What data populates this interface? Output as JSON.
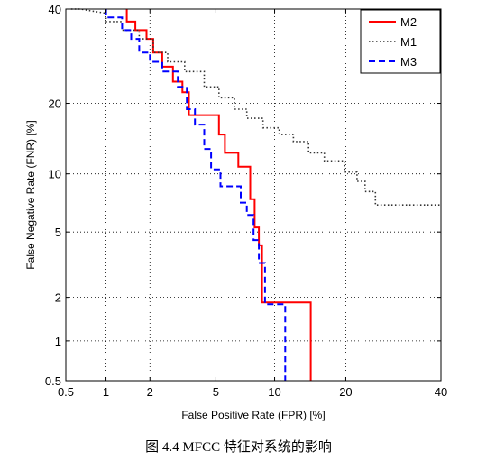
{
  "chart_data": {
    "type": "line",
    "title": "",
    "xlabel": "False Positive Rate (FPR) [%]",
    "ylabel": "False Negative Rate (FNR) [%]",
    "x_scale": "normal-deviate",
    "y_scale": "normal-deviate",
    "xlim": [
      0.5,
      40
    ],
    "ylim": [
      0.5,
      40
    ],
    "xticks": [
      0.5,
      1,
      2,
      5,
      10,
      20,
      40
    ],
    "xtick_labels": [
      "0.5",
      "1",
      "2",
      "5",
      "10",
      "20",
      "40"
    ],
    "yticks": [
      0.5,
      1,
      2,
      5,
      10,
      20,
      40
    ],
    "ytick_labels": [
      "0.5",
      "1",
      "2",
      "5",
      "10",
      "20",
      "40"
    ],
    "grid": true,
    "legend_position": "top-right",
    "series": [
      {
        "name": "M2",
        "color": "#ff0000",
        "dash": "solid",
        "x": [
          1.4,
          1.4,
          1.6,
          1.6,
          1.9,
          1.9,
          2.1,
          2.1,
          2.4,
          2.4,
          2.8,
          2.8,
          3.2,
          3.2,
          3.5,
          3.5,
          5.2,
          5.2,
          5.6,
          5.6,
          6.6,
          6.6,
          7.6,
          7.6,
          8.0,
          8.0,
          8.4,
          8.4,
          8.7,
          8.7,
          9.0,
          9.0,
          14.5,
          14.5
        ],
        "y": [
          40,
          37,
          37,
          35,
          35,
          33,
          33,
          30,
          30,
          27,
          27,
          24,
          24,
          22,
          22,
          18,
          18,
          15,
          15,
          12.5,
          12.5,
          10.8,
          10.8,
          7.5,
          7.5,
          5.3,
          5.3,
          4.2,
          4.2,
          1.85,
          1.85,
          1.85,
          1.85,
          0.5
        ]
      },
      {
        "name": "M1",
        "color": "#333333",
        "dash": "dotted",
        "x": [
          0.55,
          0.65,
          0.8,
          1.0,
          1.0,
          1.3,
          1.3,
          1.7,
          1.7,
          2.1,
          2.1,
          2.6,
          2.6,
          3.3,
          3.3,
          4.3,
          4.3,
          5.2,
          5.2,
          6.3,
          6.3,
          7.3,
          7.3,
          8.8,
          8.8,
          10.5,
          10.5,
          12.2,
          12.2,
          14.2,
          14.2,
          16.5,
          16.5,
          19.8,
          19.8,
          22.0,
          22.0,
          23.5,
          23.5,
          25.5,
          25.5,
          40
        ],
        "y": [
          40,
          40,
          39.5,
          39,
          37,
          37,
          35,
          35,
          33,
          33,
          30,
          30,
          28,
          28,
          26,
          26,
          23,
          23,
          21,
          21,
          19,
          19,
          17.5,
          17.5,
          16,
          16,
          15,
          15,
          14,
          14,
          12.5,
          12.5,
          11.5,
          11.5,
          10.2,
          10.2,
          9.2,
          9.2,
          8.2,
          8.2,
          7,
          7
        ]
      },
      {
        "name": "M3",
        "color": "#0000ff",
        "dash": "dashed",
        "x": [
          1.0,
          1.0,
          1.3,
          1.3,
          1.5,
          1.5,
          1.7,
          1.7,
          2.0,
          2.0,
          2.4,
          2.4,
          3.0,
          3.0,
          3.4,
          3.4,
          3.8,
          3.8,
          4.3,
          4.3,
          4.7,
          4.7,
          5.3,
          5.3,
          6.8,
          6.8,
          7.3,
          7.3,
          7.9,
          7.9,
          8.4,
          8.4,
          9.0,
          9.0,
          11.2,
          11.2
        ],
        "y": [
          40,
          38,
          38,
          35,
          35,
          33,
          33,
          30,
          30,
          28,
          28,
          26,
          26,
          23,
          23,
          19,
          19,
          16.5,
          16.5,
          13,
          13,
          10.5,
          10.5,
          8.7,
          8.7,
          7.2,
          7.2,
          6.2,
          6.2,
          4.5,
          4.5,
          3.3,
          3.3,
          1.8,
          1.8,
          0.5
        ]
      }
    ]
  },
  "caption": "图 4.4  MFCC 特征对系统的影响"
}
